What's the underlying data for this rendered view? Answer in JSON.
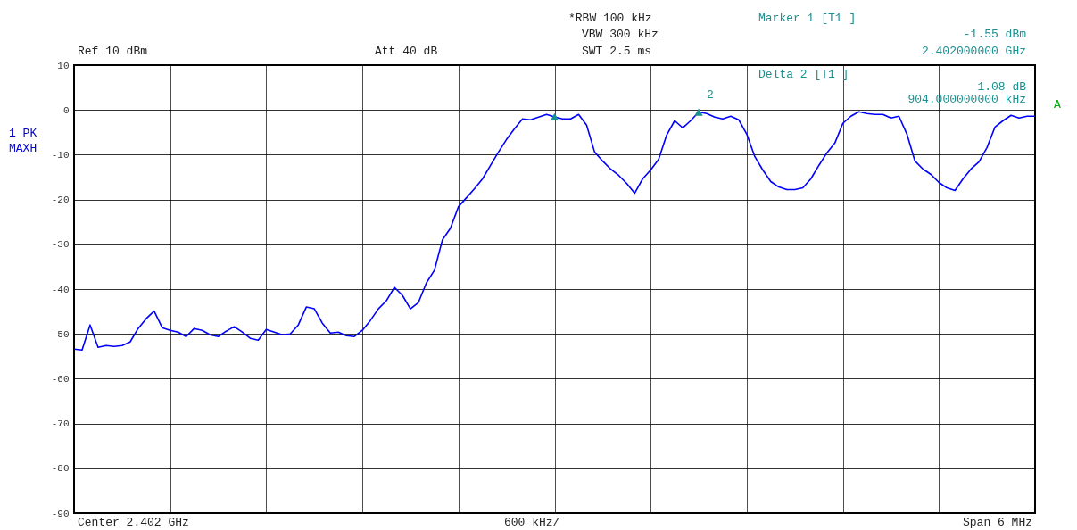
{
  "chart_data": {
    "type": "line",
    "categories": [
      null,
      null,
      null,
      null,
      null,
      null,
      null,
      null,
      null,
      null,
      null,
      null,
      null,
      null,
      null,
      null,
      null,
      null,
      null,
      null,
      null,
      null,
      null,
      null,
      null,
      null,
      null,
      null,
      null,
      null,
      null,
      null,
      null,
      null,
      null,
      null,
      null,
      null,
      null,
      null,
      null,
      null,
      null,
      null,
      null,
      null,
      null,
      null,
      null,
      null,
      null,
      null,
      null,
      null,
      null,
      null,
      null,
      null,
      null,
      null,
      null,
      null,
      null,
      null,
      null,
      null,
      null,
      null,
      null,
      null,
      null,
      null,
      null,
      null,
      null,
      null,
      null,
      null,
      null,
      null,
      null,
      null,
      null,
      null,
      null,
      null,
      null,
      null,
      null,
      null,
      null,
      null,
      null,
      null,
      null,
      null,
      null,
      null,
      null,
      null,
      null,
      null,
      null,
      null,
      null,
      null,
      null,
      null,
      null,
      null,
      null,
      null,
      null,
      null,
      null,
      null,
      null,
      null,
      null,
      null,
      null
    ],
    "ylim": [
      -90,
      10
    ],
    "yticks": [
      10,
      0,
      -10,
      -20,
      -30,
      -40,
      -50,
      -60,
      -70,
      -80,
      -90
    ],
    "grid": true,
    "tick_labels": "y",
    "series": [
      {
        "color": "#0000ff",
        "values": [
          -53.4,
          -53.6,
          -48,
          -53,
          -52.6,
          -52.8,
          -52.6,
          -51.8,
          -48.8,
          -46.6,
          -44.9,
          -48.6,
          -49.2,
          -49.6,
          -50.6,
          -48.8,
          -49.2,
          -50.2,
          -50.6,
          -49.4,
          -48.4,
          -49.6,
          -51,
          -51.4,
          -49,
          -49.6,
          -50.2,
          -50,
          -48,
          -44,
          -44.4,
          -47.6,
          -49.8,
          -49.6,
          -50.4,
          -50.6,
          -49.2,
          -47,
          -44.4,
          -42.6,
          -39.6,
          -41.4,
          -44.4,
          -43,
          -38.6,
          -35.8,
          -29,
          -26.4,
          -21.6,
          -19.6,
          -17.6,
          -15.4,
          -12.4,
          -9.4,
          -6.6,
          -4.2,
          -2,
          -2.2,
          -1.6,
          -1,
          -1.55,
          -2,
          -2,
          -1,
          -3.4,
          -9.4,
          -11.4,
          -13.2,
          -14.6,
          -16.4,
          -18.6,
          -15.4,
          -13.4,
          -11,
          -5.6,
          -2.4,
          -4,
          -2.4,
          -0.47,
          -0.8,
          -1.6,
          -2,
          -1.4,
          -2.2,
          -5.4,
          -10.4,
          -13.4,
          -16,
          -17.2,
          -17.8,
          -17.8,
          -17.4,
          -15.4,
          -12.4,
          -9.6,
          -7.4,
          -3,
          -1.4,
          -0.4,
          -0.8,
          -1,
          -1,
          -1.8,
          -1.4,
          -5.4,
          -11.4,
          -13.2,
          -14.4,
          -16.2,
          -17.4,
          -18,
          -15.4,
          -13.2,
          -11.6,
          -8.4,
          -3.8,
          -2.4,
          -1.2,
          -1.8,
          -1.4,
          -1.4
        ]
      },
      {
        "type": "scatter",
        "color": "#1a9090",
        "marker": "triangle",
        "values": [
          null,
          null,
          null,
          null,
          null,
          null,
          null,
          null,
          null,
          null,
          null,
          null,
          null,
          null,
          null,
          null,
          null,
          null,
          null,
          null,
          null,
          null,
          null,
          null,
          null,
          null,
          null,
          null,
          null,
          null,
          null,
          null,
          null,
          null,
          null,
          null,
          null,
          null,
          null,
          null,
          null,
          null,
          null,
          null,
          null,
          null,
          null,
          null,
          null,
          null,
          null,
          null,
          null,
          null,
          null,
          null,
          null,
          null,
          null,
          null,
          -1.55,
          null,
          null,
          null,
          null,
          null,
          null,
          null,
          null,
          null,
          null,
          null,
          null,
          null,
          null,
          null,
          null,
          null,
          -0.47,
          null,
          null,
          null,
          null,
          null,
          null,
          null,
          null,
          null,
          null,
          null,
          null,
          null,
          null,
          null,
          null,
          null,
          null,
          null,
          null,
          null,
          null,
          null,
          null,
          null,
          null,
          null,
          null,
          null,
          null,
          null,
          null,
          null,
          null,
          null,
          null,
          null,
          null,
          null,
          null,
          null,
          null
        ]
      }
    ],
    "annotations": [
      "Ref 10 dBm",
      "Att 40 dB",
      "*RBW 100 kHz",
      "VBW 300 kHz",
      "SWT 2.5 ms",
      "Marker 1 [T1 ]",
      "-1.55 dBm",
      "2.402000000 GHz",
      "Delta 2 [T1 ]",
      "1.08 dB",
      "904.000000000 kHz",
      "1 PK",
      "MAXH",
      "A",
      "Center 2.402 GHz",
      "600 kHz/",
      "Span 6 MHz",
      "2"
    ]
  }
}
